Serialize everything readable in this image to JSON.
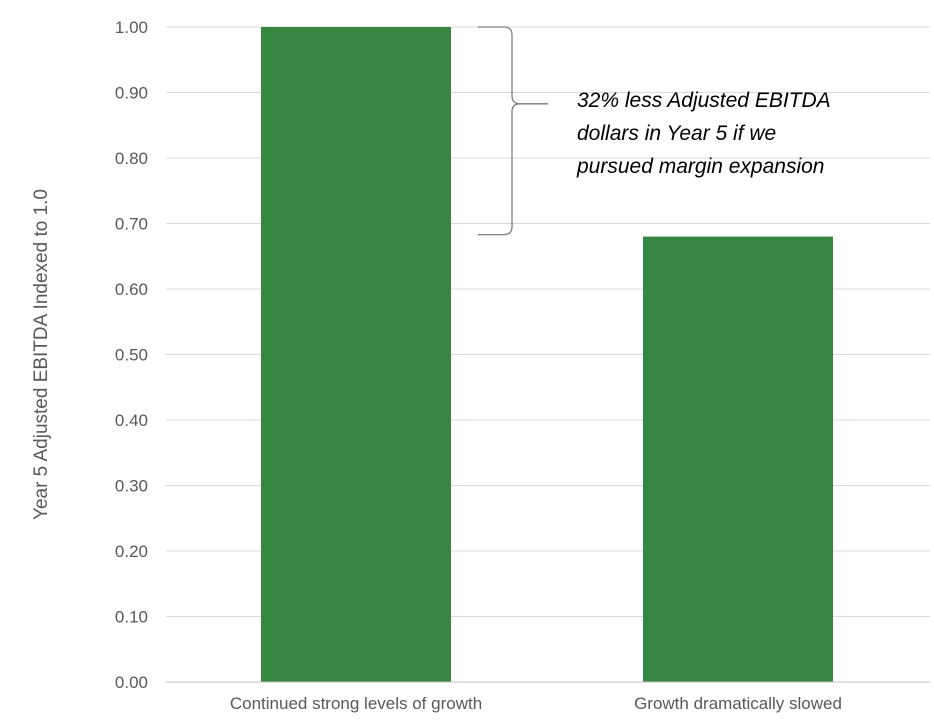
{
  "chart_data": {
    "type": "bar",
    "categories": [
      "Continued strong levels of growth",
      "Growth dramatically slowed"
    ],
    "values": [
      1.0,
      0.68
    ],
    "title": "",
    "xlabel": "",
    "ylabel": "Year 5 Adjusted EBITDA Indexed to 1.0",
    "ylim": [
      0,
      1.0
    ],
    "yticks": [
      "0.00",
      "0.10",
      "0.20",
      "0.30",
      "0.40",
      "0.50",
      "0.60",
      "0.70",
      "0.80",
      "0.90",
      "1.00"
    ],
    "grid": true,
    "bar_color": "#368541",
    "annotation": {
      "lines": [
        "32% less Adjusted EBITDA",
        "dollars in Year 5 if we",
        "pursued margin expansion"
      ],
      "bracket_from": 1.0,
      "bracket_to": 0.68
    }
  },
  "colors": {
    "bar": "#368541",
    "grid": "#d9d9d9",
    "axis": "#bfbfbf",
    "text": "#595959",
    "bracket": "#7f7f7f"
  }
}
